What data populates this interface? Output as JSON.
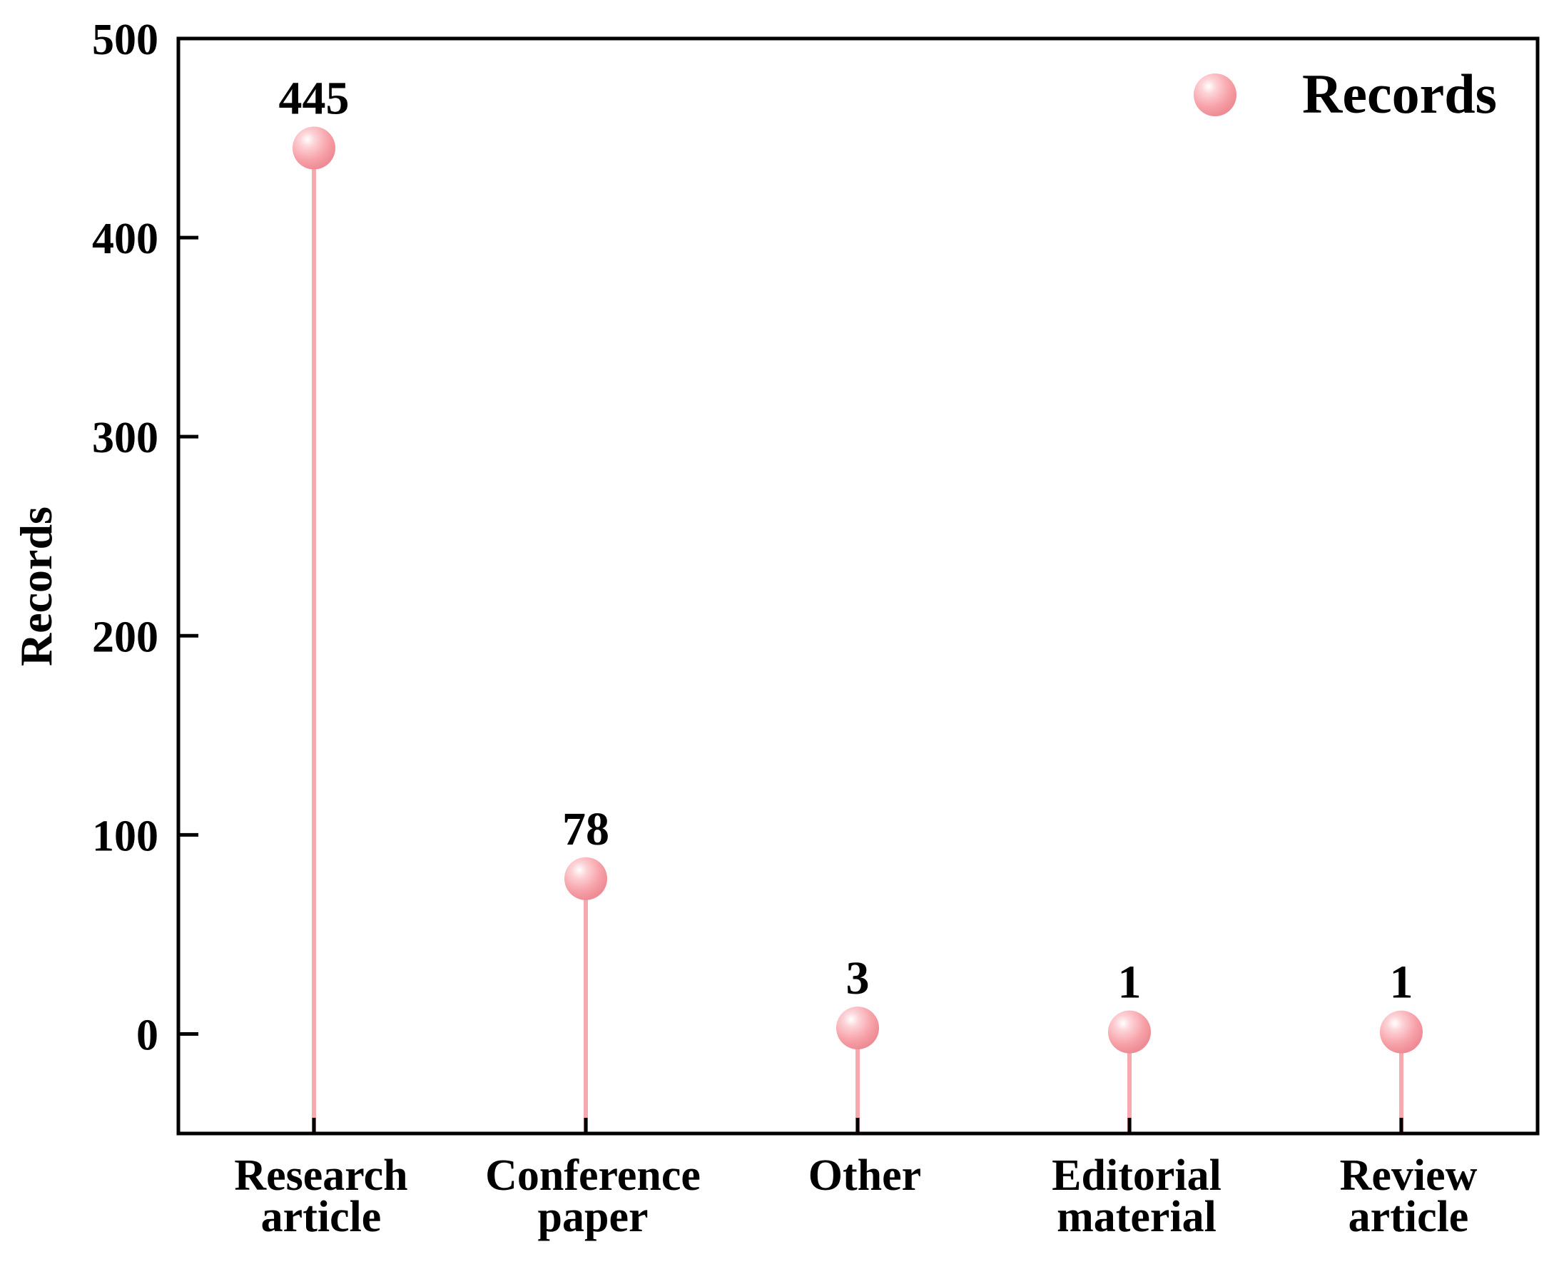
{
  "chart_data": {
    "type": "lollipop",
    "categories": [
      [
        "Research",
        "article"
      ],
      [
        "Conference",
        "paper"
      ],
      [
        "Other"
      ],
      [
        "Editorial",
        "material"
      ],
      [
        "Review",
        "article"
      ]
    ],
    "values": [
      445,
      78,
      3,
      1,
      1
    ],
    "data_labels": [
      "445",
      "78",
      "3",
      "1",
      "1"
    ],
    "series_name": "Records",
    "ylabel": "Records",
    "ylim": [
      -50,
      500
    ],
    "yticks": [
      0,
      100,
      200,
      300,
      400,
      500
    ],
    "ytick_labels": [
      "0",
      "100",
      "200",
      "300",
      "400",
      "500"
    ],
    "grid": false,
    "legend_position": "top-right",
    "colors": {
      "marker": "#f7a1a8",
      "stem": "#f7a9b0",
      "axis": "#000000"
    }
  }
}
